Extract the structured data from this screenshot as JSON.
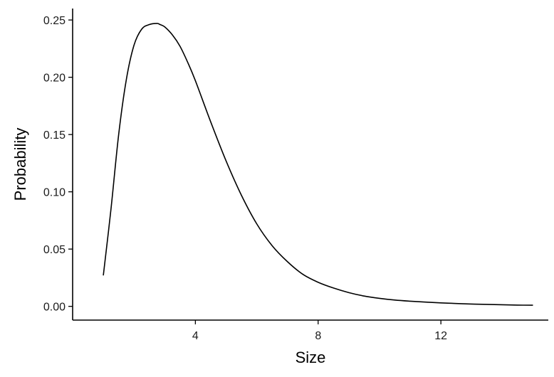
{
  "chart_data": {
    "type": "line",
    "title": "",
    "xlabel": "Size",
    "ylabel": "Probability",
    "xlim": [
      0.0,
      15.5
    ],
    "ylim": [
      -0.012,
      0.26
    ],
    "x_ticks": [
      4,
      8,
      12
    ],
    "x_tick_labels": [
      "4",
      "8",
      "12"
    ],
    "y_ticks": [
      0.0,
      0.05,
      0.1,
      0.15,
      0.2,
      0.25
    ],
    "y_tick_labels": [
      "0.00",
      "0.05",
      "0.10",
      "0.15",
      "0.20",
      "0.25"
    ],
    "grid": false,
    "legend": "none",
    "series": [
      {
        "color": "#000000",
        "x": [
          1.0,
          1.25,
          1.5,
          1.75,
          2.0,
          2.25,
          2.5,
          2.75,
          2.85,
          3.0,
          3.25,
          3.5,
          3.75,
          4.0,
          4.5,
          5.0,
          5.5,
          6.0,
          6.5,
          7.0,
          7.5,
          8.0,
          8.5,
          9.0,
          9.5,
          10.0,
          10.5,
          11.0,
          11.5,
          12.0,
          12.5,
          13.0,
          13.5,
          14.0,
          14.5,
          15.0
        ],
        "y": [
          0.027,
          0.085,
          0.15,
          0.198,
          0.228,
          0.242,
          0.246,
          0.247,
          0.246,
          0.244,
          0.237,
          0.227,
          0.213,
          0.197,
          0.161,
          0.127,
          0.097,
          0.072,
          0.053,
          0.039,
          0.028,
          0.021,
          0.016,
          0.012,
          0.009,
          0.007,
          0.0055,
          0.0045,
          0.0037,
          0.003,
          0.0025,
          0.002,
          0.0017,
          0.0014,
          0.0011,
          0.001
        ]
      }
    ]
  }
}
